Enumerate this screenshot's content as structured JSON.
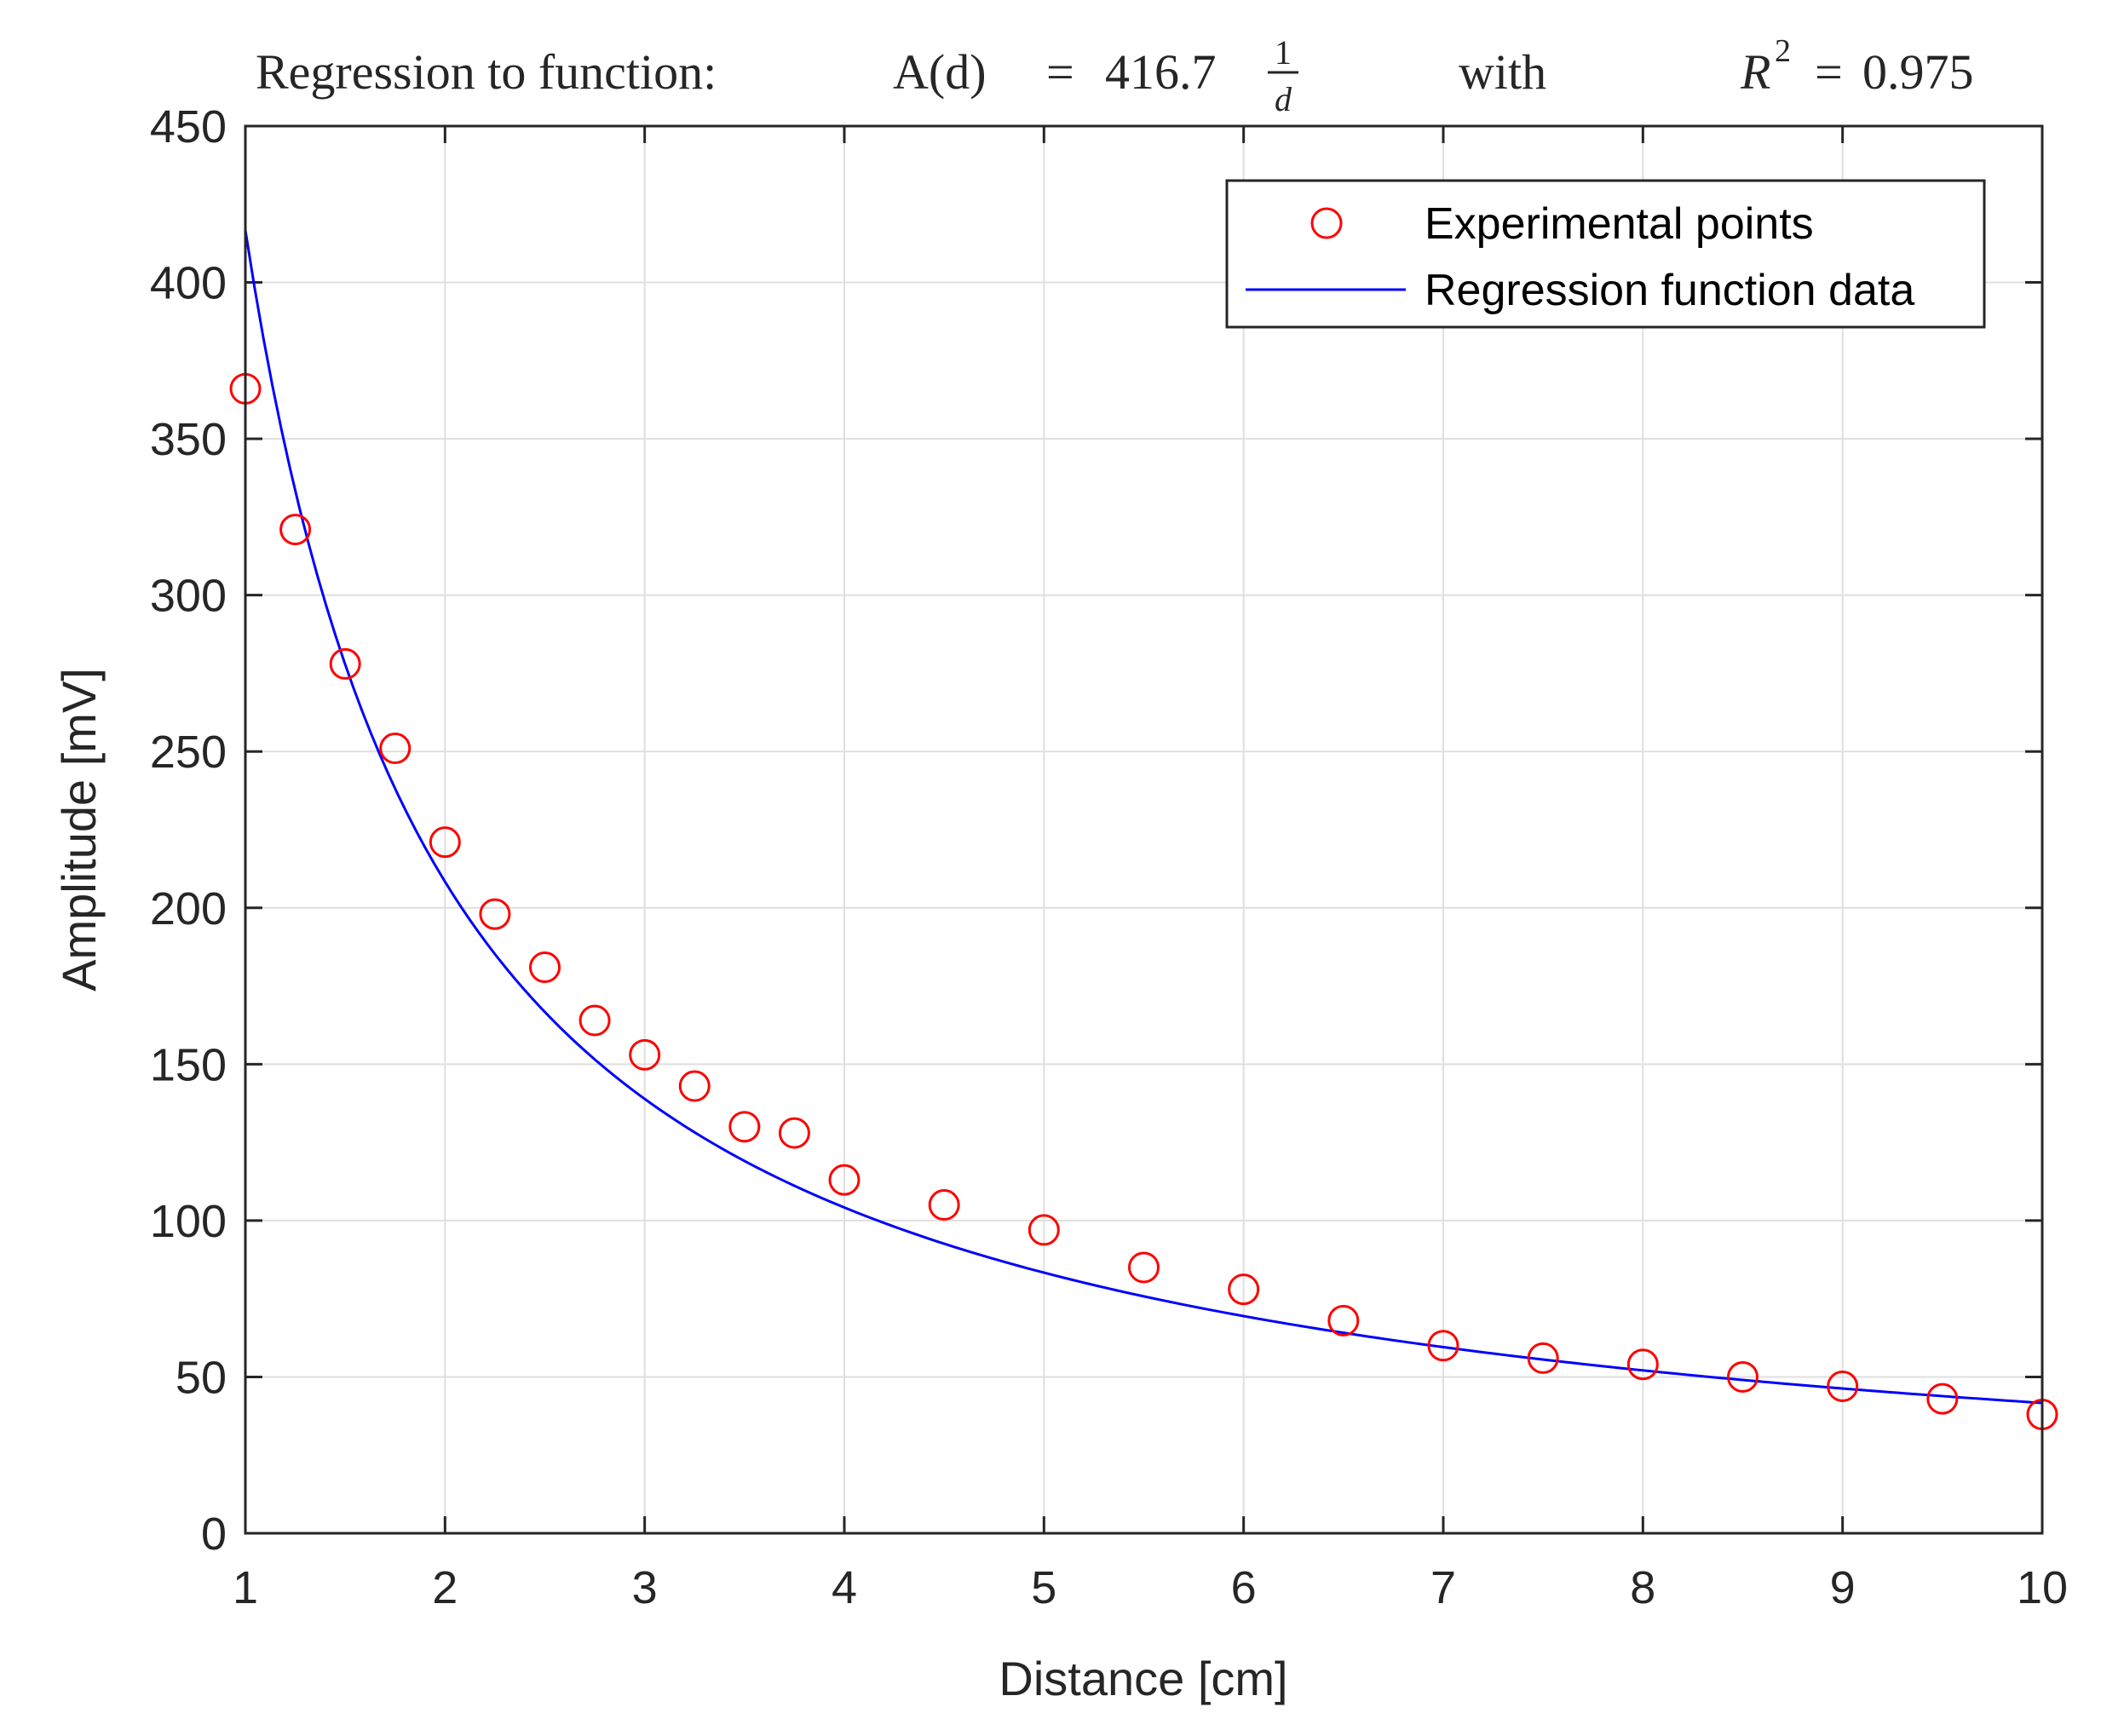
{
  "chart_data": {
    "type": "scatter",
    "title": {
      "prefix": "Regression to function:",
      "function_lhs": "A(d)",
      "equals": "=",
      "coefficient": "416.7",
      "fraction_numerator": "1",
      "fraction_denominator": "d",
      "with": "with",
      "r_symbol": "R",
      "r_exponent": "2",
      "r_equals": "=",
      "r_value": "0.975"
    },
    "xlabel": "Distance [cm]",
    "ylabel": "Amplitude [mV]",
    "xlim": [
      1,
      10
    ],
    "ylim": [
      0,
      450
    ],
    "xticks": [
      1,
      2,
      3,
      4,
      5,
      6,
      7,
      8,
      9,
      10
    ],
    "yticks": [
      0,
      50,
      100,
      150,
      200,
      250,
      300,
      350,
      400,
      450
    ],
    "grid": true,
    "legend_position": "top-right",
    "legend": [
      {
        "label": "Experimental points",
        "marker": "circle",
        "color": "#ff0000"
      },
      {
        "label": "Regression function data",
        "marker": "line",
        "color": "#0000ff"
      }
    ],
    "series": [
      {
        "name": "Experimental points",
        "kind": "scatter",
        "color": "#ff0000",
        "x": [
          1,
          1.25,
          1.5,
          1.75,
          2,
          2.25,
          2.5,
          2.75,
          3,
          3.25,
          3.5,
          3.75,
          4,
          4.5,
          5,
          5.5,
          6,
          6.5,
          7,
          7.5,
          8,
          8.5,
          9,
          9.5,
          10
        ],
        "y": [
          366,
          321,
          278,
          251,
          221,
          198,
          181,
          164,
          153,
          143,
          130,
          128,
          113,
          105,
          97,
          85,
          78,
          68,
          60,
          56,
          54,
          50,
          47,
          43,
          38
        ]
      },
      {
        "name": "Regression function data",
        "kind": "line",
        "color": "#0000ff",
        "function": "416.7/d",
        "coefficient": 416.7,
        "domain": [
          1,
          10
        ]
      }
    ]
  }
}
